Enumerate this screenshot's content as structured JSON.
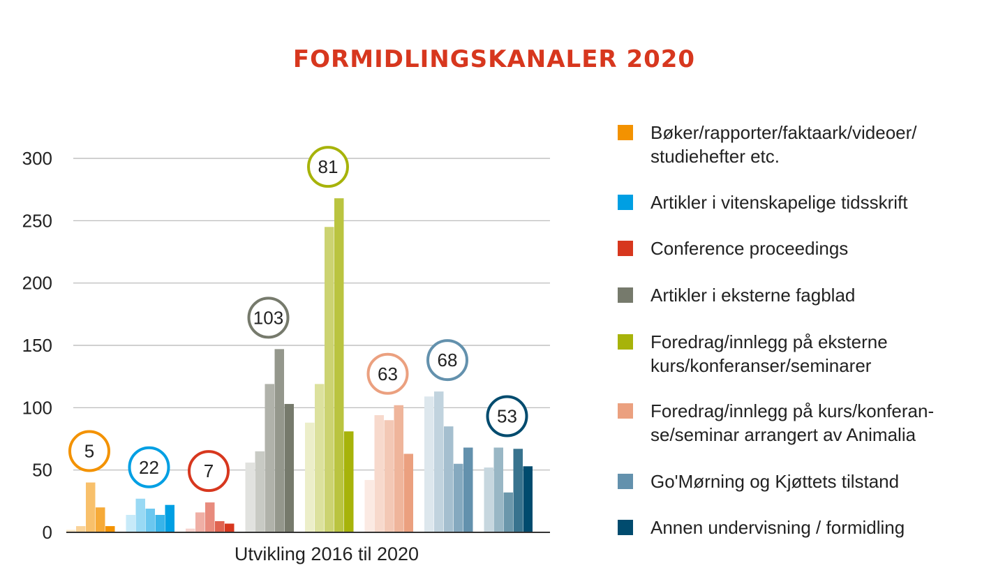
{
  "chart_data": {
    "type": "bar",
    "title": "FORMIDLINGSKANALER 2020",
    "xlabel": "Utvikling 2016 til 2020",
    "ylabel": "",
    "ylim": [
      0,
      300
    ],
    "yticks": [
      0,
      50,
      100,
      150,
      200,
      250,
      300
    ],
    "grid": true,
    "legend_position": "right",
    "series": [
      {
        "name": "Bøker/rapporter/faktaark/videoer/ studiehefter etc.",
        "legend_lines": [
          "Bøker/rapporter/faktaark/videoer/",
          "studiehefter etc."
        ],
        "color": "#f39200",
        "values": [
          2,
          5,
          40,
          20,
          5
        ],
        "label": "5"
      },
      {
        "name": "Artikler i vitenskapelige tidsskrift",
        "legend_lines": [
          "Artikler i vitenskapelige tidsskrift"
        ],
        "color": "#009fe3",
        "values": [
          14,
          27,
          19,
          14,
          22
        ],
        "label": "22"
      },
      {
        "name": "Conference proceedings",
        "legend_lines": [
          "Conference proceedings"
        ],
        "color": "#d7371e",
        "values": [
          3,
          16,
          24,
          9,
          7
        ],
        "label": "7"
      },
      {
        "name": "Artikler i eksterne fagblad",
        "legend_lines": [
          "Artikler i eksterne fagblad"
        ],
        "color": "#767a6c",
        "values": [
          56,
          65,
          119,
          147,
          103
        ],
        "label": "103"
      },
      {
        "name": "Foredrag/innlegg på eksterne kurs/konferanser/seminarer",
        "legend_lines": [
          "Foredrag/innlegg på eksterne",
          "kurs/konferanser/seminarer"
        ],
        "color": "#a7b30a",
        "values": [
          88,
          119,
          245,
          268,
          81
        ],
        "label": "81"
      },
      {
        "name": "Foredrag/innlegg på kurs/konferanse/seminar arrangert av Animalia",
        "legend_lines": [
          "Foredrag/innlegg på kurs/konferan-",
          "se/seminar arrangert av Animalia"
        ],
        "color": "#eba07f",
        "values": [
          42,
          94,
          90,
          102,
          63
        ],
        "label": "63"
      },
      {
        "name": "Go'Mørning og Kjøttets tilstand",
        "legend_lines": [
          "Go'Mørning og Kjøttets tilstand"
        ],
        "color": "#6391ad",
        "values": [
          109,
          113,
          85,
          55,
          68
        ],
        "label": "68"
      },
      {
        "name": "Annen undervisning / formidling",
        "legend_lines": [
          "Annen undervisning / formidling"
        ],
        "color": "#004b6e",
        "values": [
          52,
          68,
          32,
          67,
          53
        ],
        "label": "53"
      }
    ]
  }
}
